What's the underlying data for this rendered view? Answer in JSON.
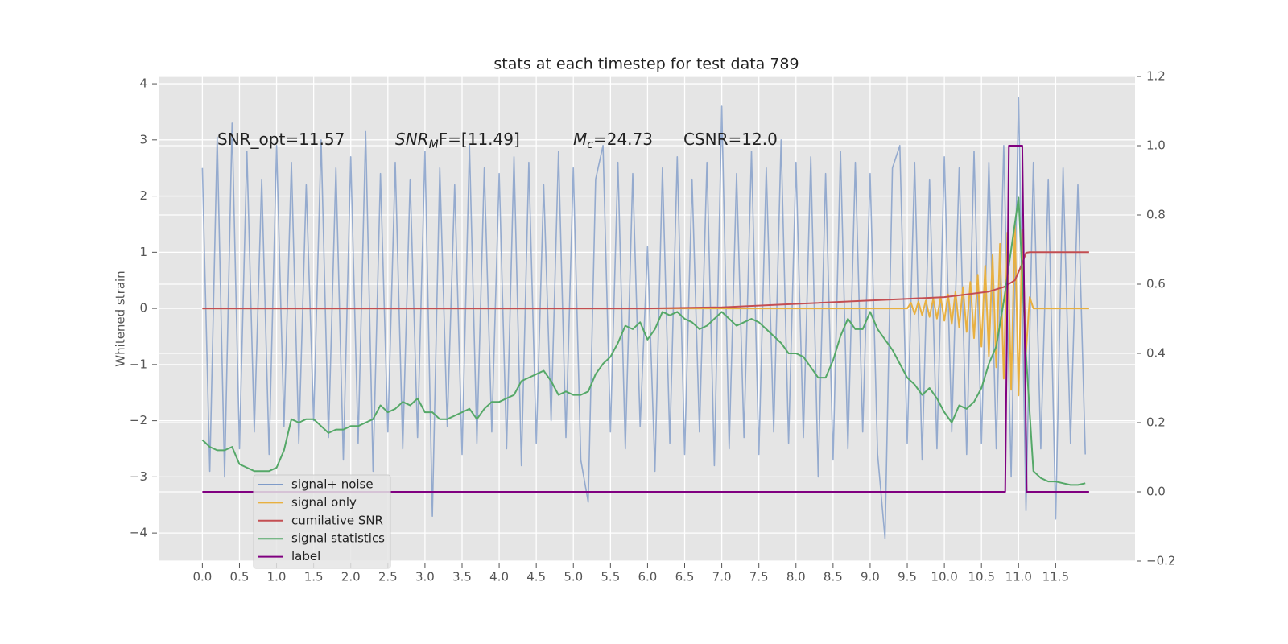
{
  "chart_data": {
    "type": "line",
    "title": "stats at each timestep for test data 789",
    "ylabel": "Whitened strain",
    "annotations": [
      {
        "text": "SNR_opt=11.57"
      },
      {
        "text": "SNR",
        "sub": "M",
        "tail": "F=[11.49]",
        "italic": true
      },
      {
        "text": "M",
        "sub": "c",
        "tail": "=24.73",
        "italic": true
      },
      {
        "text": "CSNR=12.0"
      }
    ],
    "background": "#e5e5e5",
    "grid": true,
    "legend": "lower left",
    "xlim": [
      -0.59,
      12.57
    ],
    "xticks": [
      {
        "value": 0,
        "label": "0.0"
      },
      0.5,
      {
        "value": 1,
        "label": "1.0"
      },
      1.5,
      {
        "value": 2,
        "label": "2.0"
      },
      2.5,
      {
        "value": 3,
        "label": "3.0"
      },
      3.5,
      {
        "value": 4,
        "label": "4.0"
      },
      4.5,
      {
        "value": 5,
        "label": "5.0"
      },
      5.5,
      {
        "value": 6,
        "label": "6.0"
      },
      6.5,
      {
        "value": 7,
        "label": "7.0"
      },
      7.5,
      {
        "value": 8,
        "label": "8.0"
      },
      8.5,
      {
        "value": 9,
        "label": "9.0"
      },
      9.5,
      {
        "value": 10,
        "label": "10.0"
      },
      10.5,
      {
        "value": 11,
        "label": "11.0"
      },
      11.5
    ],
    "ylim": [
      -4.5,
      4.13
    ],
    "yticks": [
      {
        "value": -4,
        "label": "−4"
      },
      {
        "value": -3,
        "label": "−3"
      },
      {
        "value": -2,
        "label": "−2"
      },
      {
        "value": -1,
        "label": "−1"
      },
      0,
      1,
      2,
      3,
      4
    ],
    "y2lim": [
      -0.2,
      1.2
    ],
    "y2ticks": [
      {
        "value": -0.2,
        "label": "−0.2"
      },
      {
        "value": 0,
        "label": "0.0"
      },
      0.2,
      0.4,
      0.6,
      0.8,
      {
        "value": 1,
        "label": "1.0"
      },
      1.2
    ],
    "x": [
      0,
      0.1,
      0.2,
      0.3,
      0.4,
      0.5,
      0.6,
      0.7,
      0.8,
      0.9,
      1,
      1.1,
      1.2,
      1.3,
      1.4,
      1.5,
      1.6,
      1.7,
      1.8,
      1.9,
      2,
      2.1,
      2.2,
      2.3,
      2.4,
      2.5,
      2.6,
      2.7,
      2.8,
      2.9,
      3,
      3.1,
      3.2,
      3.3,
      3.4,
      3.5,
      3.6,
      3.7,
      3.8,
      3.9,
      4,
      4.1,
      4.2,
      4.3,
      4.4,
      4.5,
      4.6,
      4.7,
      4.8,
      4.9,
      5,
      5.1,
      5.2,
      5.3,
      5.4,
      5.5,
      5.6,
      5.7,
      5.8,
      5.9,
      6,
      6.1,
      6.2,
      6.3,
      6.4,
      6.5,
      6.6,
      6.7,
      6.8,
      6.9,
      7,
      7.1,
      7.2,
      7.3,
      7.4,
      7.5,
      7.6,
      7.7,
      7.8,
      7.9,
      8,
      8.1,
      8.2,
      8.3,
      8.4,
      8.5,
      8.6,
      8.7,
      8.8,
      8.9,
      9,
      9.1,
      9.2,
      9.3,
      9.4,
      9.5,
      9.6,
      9.7,
      9.8,
      9.9,
      10,
      10.1,
      10.2,
      10.3,
      10.4,
      10.5,
      10.6,
      10.7,
      10.8,
      10.9,
      11,
      11.1,
      11.2,
      11.3,
      11.4,
      11.5,
      11.6,
      11.7,
      11.8,
      11.9
    ],
    "series": [
      {
        "name": "signal+ noise",
        "color": "#7f9bc8",
        "values": [
          2.5,
          -2.9,
          3.05,
          -3.0,
          3.3,
          -2.5,
          2.8,
          -2.2,
          2.3,
          -2.6,
          2.9,
          -2.1,
          2.6,
          -2.4,
          2.2,
          -2.0,
          3.0,
          -2.3,
          2.5,
          -2.7,
          2.7,
          -2.4,
          3.15,
          -2.9,
          2.4,
          -2.2,
          2.6,
          -2.5,
          2.3,
          -2.3,
          2.8,
          -3.7,
          2.5,
          -2.1,
          2.2,
          -2.6,
          2.9,
          -2.4,
          2.5,
          -2.2,
          2.4,
          -2.5,
          2.7,
          -2.8,
          2.6,
          -2.4,
          2.2,
          -2.0,
          2.8,
          -2.3,
          2.5,
          -2.7,
          -3.45,
          2.3,
          2.9,
          -2.2,
          2.6,
          -2.5,
          2.4,
          -2.1,
          1.1,
          -2.9,
          2.5,
          -2.4,
          2.7,
          -2.6,
          2.3,
          -2.2,
          2.6,
          -2.8,
          3.6,
          -2.5,
          2.4,
          -2.3,
          2.8,
          -2.6,
          2.5,
          -2.2,
          3.0,
          -2.4,
          2.6,
          -2.3,
          2.7,
          -3.0,
          2.4,
          -2.7,
          2.8,
          -2.5,
          2.6,
          -2.2,
          2.4,
          -2.6,
          -4.1,
          2.5,
          2.9,
          -2.4,
          2.6,
          -2.7,
          2.3,
          -2.5,
          2.7,
          -2.2,
          2.5,
          -2.6,
          2.8,
          -2.4,
          2.6,
          -2.5,
          2.9,
          -3.0,
          3.75,
          -3.6,
          2.6,
          -2.5,
          2.3,
          -3.75,
          2.5,
          -2.4,
          2.2,
          -2.6
        ]
      },
      {
        "name": "signal only",
        "color": "#e8b040",
        "x": [
          0,
          9.5,
          9.55,
          9.6,
          9.65,
          9.7,
          9.75,
          9.8,
          9.85,
          9.9,
          9.95,
          10,
          10.05,
          10.1,
          10.15,
          10.2,
          10.25,
          10.3,
          10.35,
          10.4,
          10.45,
          10.5,
          10.55,
          10.6,
          10.65,
          10.7,
          10.75,
          10.8,
          10.85,
          10.9,
          10.95,
          11,
          11.05,
          11.1,
          11.15,
          11.2,
          11.95
        ],
        "values": [
          0,
          0,
          0.1,
          -0.1,
          0.12,
          -0.12,
          0.14,
          -0.15,
          0.17,
          -0.18,
          0.2,
          -0.22,
          0.25,
          -0.28,
          0.3,
          -0.34,
          0.38,
          -0.42,
          0.47,
          -0.53,
          0.6,
          -0.68,
          0.76,
          -0.85,
          0.95,
          -1.05,
          1.15,
          -1.25,
          1.35,
          -1.45,
          1.5,
          -1.55,
          1.4,
          -0.8,
          0.2,
          0,
          0
        ]
      },
      {
        "name": "cumilative SNR",
        "color": "#c44e52",
        "x": [
          0,
          6,
          7,
          8,
          9,
          9.5,
          10,
          10.3,
          10.6,
          10.8,
          10.95,
          11.05,
          11.1,
          11.15,
          11.95
        ],
        "values": [
          0,
          0,
          0.02,
          0.08,
          0.14,
          0.17,
          0.2,
          0.25,
          0.3,
          0.38,
          0.5,
          0.8,
          0.99,
          1,
          1
        ]
      },
      {
        "name": "signal statistics",
        "color": "#55a868",
        "axis": "y2",
        "values": [
          0.15,
          0.13,
          0.12,
          0.12,
          0.13,
          0.08,
          0.07,
          0.06,
          0.06,
          0.06,
          0.07,
          0.12,
          0.21,
          0.2,
          0.21,
          0.21,
          0.19,
          0.17,
          0.18,
          0.18,
          0.19,
          0.19,
          0.2,
          0.21,
          0.25,
          0.23,
          0.24,
          0.26,
          0.25,
          0.27,
          0.23,
          0.23,
          0.21,
          0.21,
          0.22,
          0.23,
          0.24,
          0.21,
          0.24,
          0.26,
          0.26,
          0.27,
          0.28,
          0.32,
          0.33,
          0.34,
          0.35,
          0.32,
          0.28,
          0.29,
          0.28,
          0.28,
          0.29,
          0.34,
          0.37,
          0.39,
          0.43,
          0.48,
          0.47,
          0.49,
          0.44,
          0.47,
          0.52,
          0.51,
          0.52,
          0.5,
          0.49,
          0.47,
          0.48,
          0.5,
          0.52,
          0.5,
          0.48,
          0.49,
          0.5,
          0.49,
          0.47,
          0.45,
          0.43,
          0.4,
          0.4,
          0.39,
          0.36,
          0.33,
          0.33,
          0.38,
          0.45,
          0.5,
          0.47,
          0.47,
          0.52,
          0.47,
          0.44,
          0.41,
          0.37,
          0.33,
          0.31,
          0.28,
          0.3,
          0.27,
          0.23,
          0.2,
          0.25,
          0.24,
          0.26,
          0.3,
          0.37,
          0.42,
          0.55,
          0.7,
          0.85,
          0.4,
          0.06,
          0.04,
          0.03,
          0.03,
          0.025,
          0.02,
          0.02,
          0.025
        ]
      },
      {
        "name": "label",
        "color": "#800080",
        "axis": "y2",
        "x": [
          0,
          10.82,
          10.87,
          11.05,
          11.11,
          11.95
        ],
        "values": [
          0,
          0,
          1,
          1,
          0,
          0
        ]
      }
    ]
  }
}
